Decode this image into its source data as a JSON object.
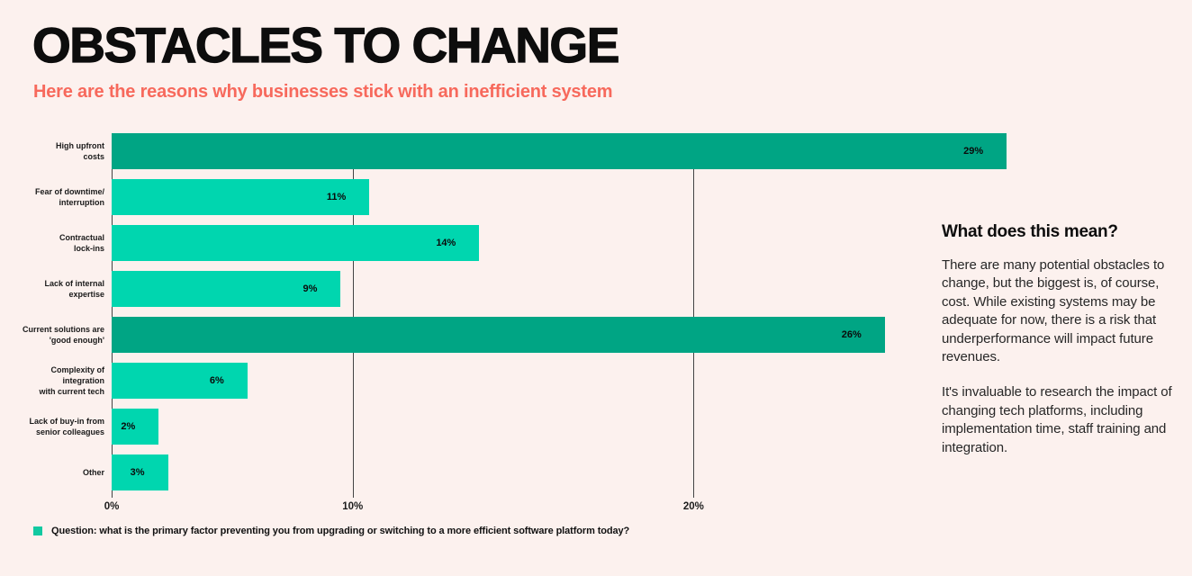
{
  "page": {
    "background_color": "#FCF1EE"
  },
  "header": {
    "title": "OBSTACLES TO CHANGE",
    "subtitle": "Here are the reasons why businesses stick with an inefficient system",
    "subtitle_color": "#F7695C"
  },
  "chart_data": {
    "type": "bar",
    "orientation": "horizontal",
    "categories": [
      "High upfront costs",
      "Fear of downtime/interruption",
      "Contractual lock-ins",
      "Lack of internal expertise",
      "Current solutions are 'good enough'",
      "Complexity of integration with current tech",
      "Lack of buy-in from senior colleagues",
      "Other"
    ],
    "category_lines": [
      [
        "High upfront",
        "costs"
      ],
      [
        "Fear of downtime/",
        "interruption"
      ],
      [
        "Contractual",
        "lock-ins"
      ],
      [
        "Lack of internal",
        "expertise"
      ],
      [
        "Current solutions are",
        "'good enough'"
      ],
      [
        "Complexity of integration",
        "with current tech"
      ],
      [
        "Lack of buy-in from",
        "senior colleagues"
      ],
      [
        "Other"
      ]
    ],
    "values": [
      29,
      11,
      14,
      9,
      26,
      6,
      2,
      3
    ],
    "value_labels": [
      "29%",
      "11%",
      "14%",
      "9%",
      "26%",
      "6%",
      "2%",
      "3%"
    ],
    "emphasized": [
      true,
      false,
      false,
      false,
      true,
      false,
      false,
      false
    ],
    "bar_colors": {
      "default": "#00D6AF",
      "emphasis": "#00A584"
    },
    "xlim": [
      0,
      30
    ],
    "x_tick_labels": [
      "0%",
      "10%",
      "20%"
    ],
    "tick_positions_pct": [
      0,
      26.1,
      63.0
    ],
    "display_widths_pct": [
      96.9,
      27.9,
      39.8,
      24.8,
      83.7,
      14.7,
      5.1,
      6.1
    ],
    "grid": "vertical lines at ticks, drawn behind bars",
    "legend": {
      "position": "bottom-left",
      "swatch_color": "#11C9A1",
      "text": "Question: what is the primary factor preventing you from upgrading or switching to a more efficient software platform today?"
    }
  },
  "aside": {
    "heading": "What does this mean?",
    "paragraphs": [
      "There are many potential obstacles to change, but the biggest is, of course, cost. While existing systems may be adequate for now, there is a risk that underperformance will impact future revenues.",
      "It's invaluable to research the impact of changing tech platforms, including implementation time, staff training and integration."
    ]
  }
}
